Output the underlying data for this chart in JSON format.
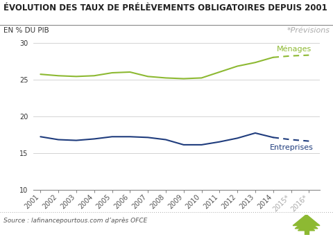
{
  "title": "ÉVOLUTION DES TAUX DE PRÉLÈVEMENTS OBLIGATOIRES DEPUIS 2001",
  "ylabel": "EN % DU PIB",
  "previsions_label": "*Prévisions",
  "source": "Source : lafinancepourtous.com d’après OFCE",
  "years_solid": [
    2001,
    2002,
    2003,
    2004,
    2005,
    2006,
    2007,
    2008,
    2009,
    2010,
    2011,
    2012,
    2013,
    2014
  ],
  "years_dashed": [
    2014,
    2015,
    2016
  ],
  "menages_solid": [
    25.7,
    25.5,
    25.4,
    25.5,
    25.9,
    26.0,
    25.4,
    25.2,
    25.1,
    25.2,
    26.0,
    26.8,
    27.3,
    28.0
  ],
  "menages_dashed": [
    28.0,
    28.2,
    28.3
  ],
  "entreprises_solid": [
    17.2,
    16.8,
    16.7,
    16.9,
    17.2,
    17.2,
    17.1,
    16.8,
    16.1,
    16.1,
    16.5,
    17.0,
    17.7,
    17.1
  ],
  "entreprises_dashed": [
    17.1,
    16.8,
    16.6
  ],
  "menages_color": "#8db932",
  "entreprises_color": "#1f3c7d",
  "ylim": [
    10,
    30
  ],
  "yticks": [
    10,
    15,
    20,
    25,
    30
  ],
  "background_color": "#ffffff",
  "title_fontsize": 8.5,
  "axis_label_fontsize": 7.5,
  "tick_fontsize": 7.0,
  "annotation_fontsize": 8.0,
  "source_fontsize": 6.5
}
